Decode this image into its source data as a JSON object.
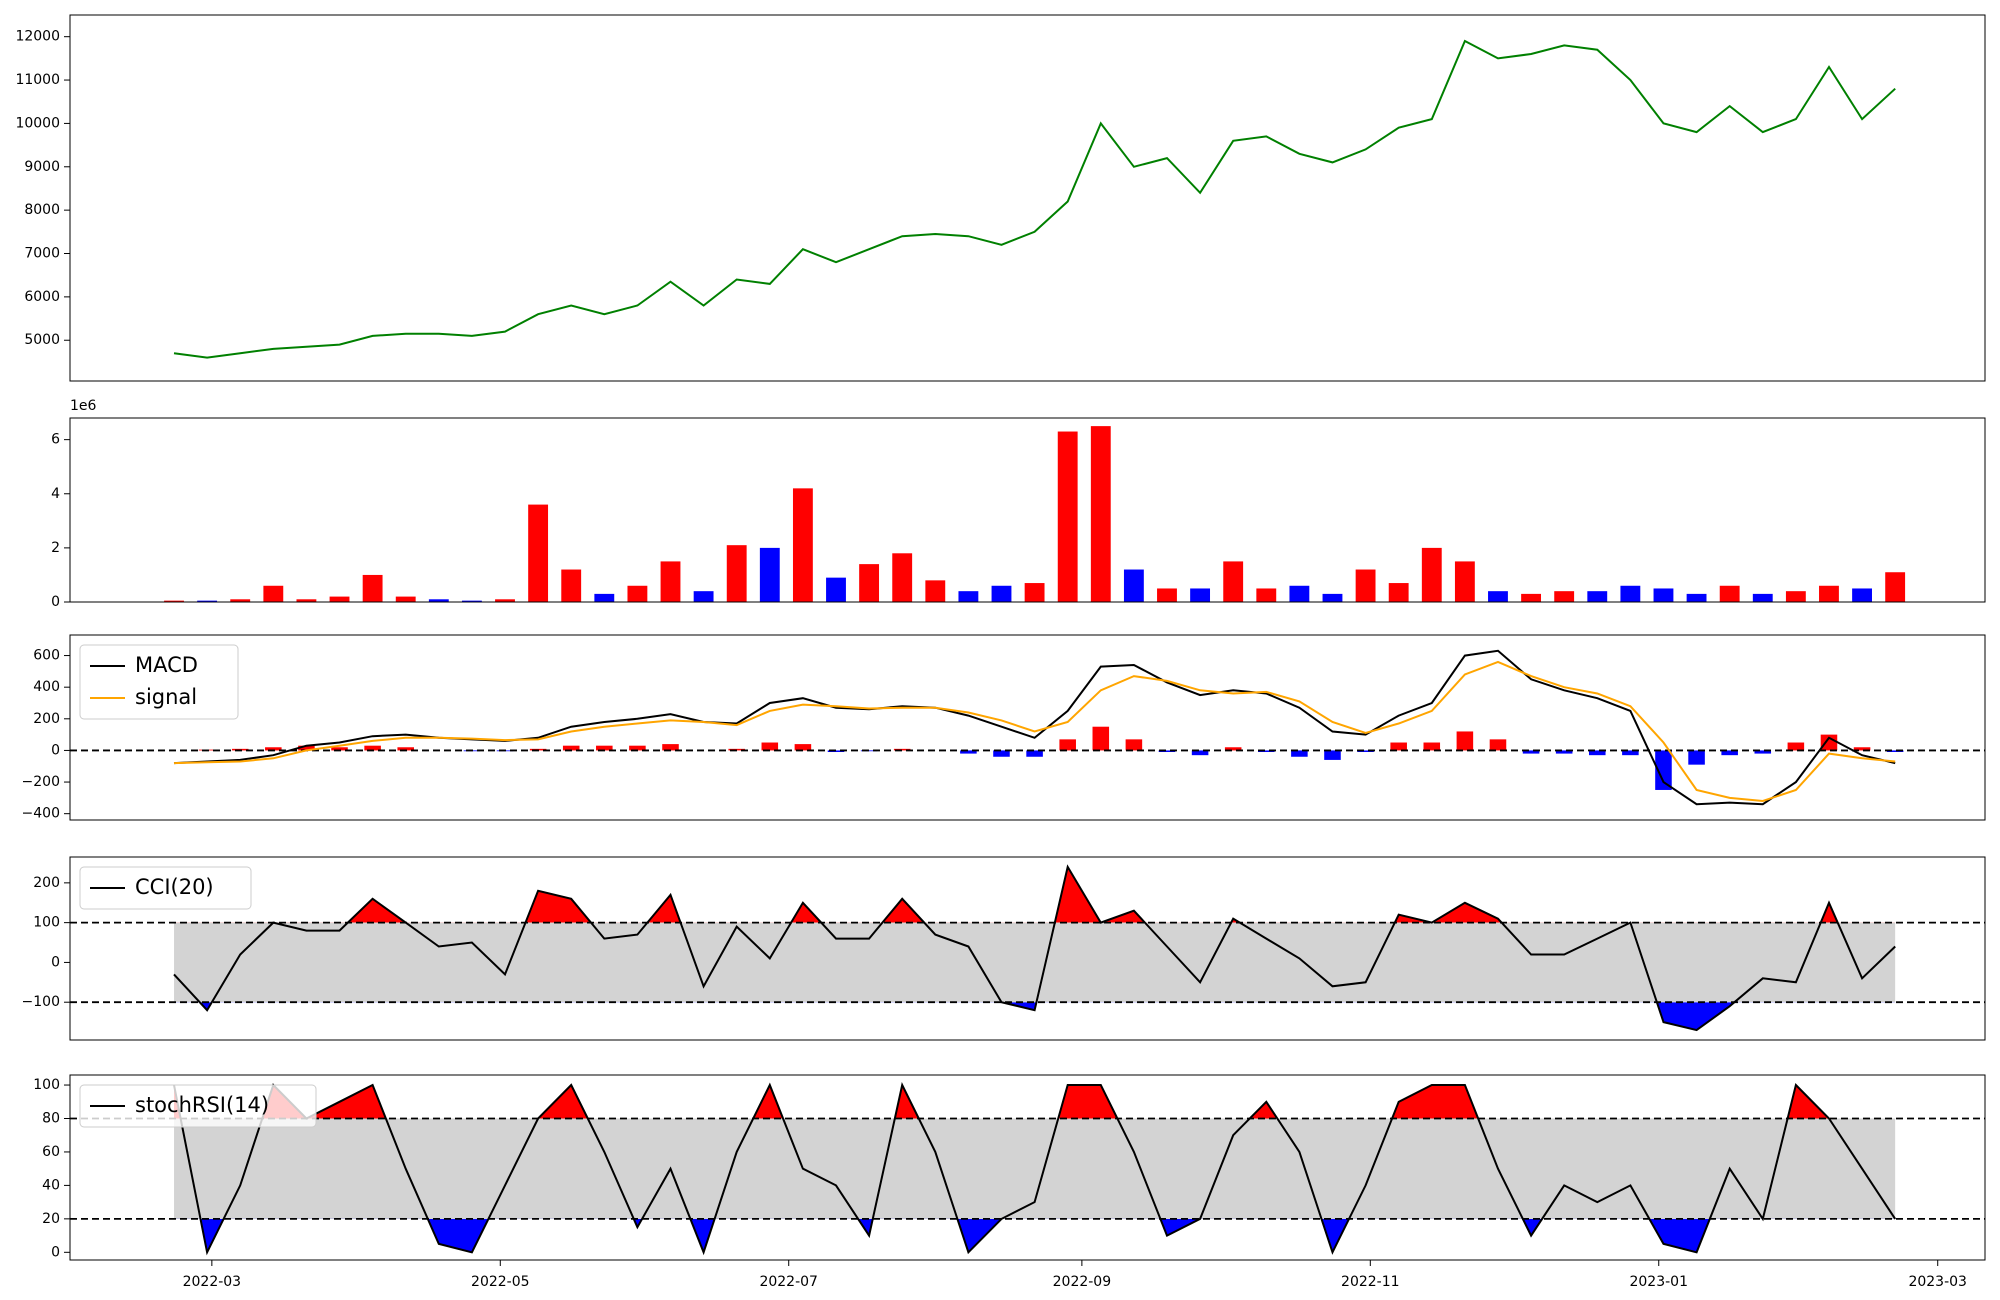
{
  "chart_data": [
    {
      "type": "line",
      "x": [
        "2022-02-21",
        "2022-02-28",
        "2022-03-07",
        "2022-03-14",
        "2022-03-21",
        "2022-03-28",
        "2022-04-04",
        "2022-04-11",
        "2022-04-18",
        "2022-04-25",
        "2022-05-02",
        "2022-05-09",
        "2022-05-16",
        "2022-05-23",
        "2022-05-30",
        "2022-06-06",
        "2022-06-13",
        "2022-06-20",
        "2022-06-27",
        "2022-07-04",
        "2022-07-11",
        "2022-07-18",
        "2022-07-25",
        "2022-08-01",
        "2022-08-08",
        "2022-08-15",
        "2022-08-22",
        "2022-08-29",
        "2022-09-05",
        "2022-09-12",
        "2022-09-19",
        "2022-09-26",
        "2022-10-03",
        "2022-10-10",
        "2022-10-17",
        "2022-10-24",
        "2022-10-31",
        "2022-11-07",
        "2022-11-14",
        "2022-11-21",
        "2022-11-28",
        "2022-12-05",
        "2022-12-12",
        "2022-12-19",
        "2022-12-26",
        "2023-01-02",
        "2023-01-09",
        "2023-01-16",
        "2023-01-23",
        "2023-01-30",
        "2023-02-06",
        "2023-02-13",
        "2023-02-20"
      ],
      "xlim": [
        "2022-01-30",
        "2023-03-11"
      ],
      "color": "green",
      "values": [
        4700,
        4600,
        4700,
        4800,
        4850,
        4900,
        5100,
        5150,
        5150,
        5100,
        5200,
        5600,
        5800,
        5600,
        5800,
        6350,
        5800,
        6400,
        6300,
        7100,
        6800,
        7100,
        7400,
        7450,
        7400,
        7200,
        7500,
        8200,
        10000,
        9000,
        9200,
        8400,
        9600,
        9700,
        9300,
        9100,
        9400,
        9900,
        10100,
        11900,
        11500,
        11600,
        11800,
        11700,
        11000,
        10000,
        9800,
        10400,
        9800,
        10100,
        11300,
        10100,
        10800
      ],
      "ylim": [
        4060,
        12500
      ],
      "yticks": [
        5000,
        6000,
        7000,
        8000,
        9000,
        10000,
        11000,
        12000
      ]
    },
    {
      "type": "bar",
      "offset_label": "1e6",
      "values": [
        0.05,
        0.05,
        0.1,
        0.6,
        0.1,
        0.2,
        1.0,
        0.2,
        0.1,
        0.05,
        0.1,
        3.6,
        1.2,
        0.3,
        0.6,
        1.5,
        0.4,
        2.1,
        2.0,
        4.2,
        0.9,
        1.4,
        1.8,
        0.8,
        0.4,
        0.6,
        0.7,
        6.3,
        6.5,
        1.2,
        0.5,
        0.5,
        1.5,
        0.5,
        0.6,
        0.3,
        1.2,
        0.7,
        2.0,
        1.5,
        0.4,
        0.3,
        0.4,
        0.4,
        0.6,
        0.5,
        0.3,
        0.6,
        0.3,
        0.4,
        0.6,
        0.5,
        1.1
      ],
      "colors": [
        "red",
        "blue",
        "red",
        "red",
        "red",
        "red",
        "red",
        "red",
        "blue",
        "blue",
        "red",
        "red",
        "red",
        "blue",
        "red",
        "red",
        "blue",
        "red",
        "blue",
        "red",
        "blue",
        "red",
        "red",
        "red",
        "blue",
        "blue",
        "red",
        "red",
        "red",
        "blue",
        "red",
        "blue",
        "red",
        "red",
        "blue",
        "blue",
        "red",
        "red",
        "red",
        "red",
        "blue",
        "red",
        "red",
        "blue",
        "blue",
        "blue",
        "blue",
        "red",
        "blue",
        "red",
        "red",
        "blue",
        "red"
      ],
      "ylim": [
        0,
        6.8
      ],
      "yticks": [
        0,
        2,
        4,
        6
      ]
    },
    {
      "type": "macd",
      "legend": "upper left",
      "series": [
        {
          "name": "MACD",
          "color": "black",
          "values": [
            -80,
            -70,
            -60,
            -30,
            30,
            50,
            90,
            100,
            80,
            70,
            60,
            80,
            150,
            180,
            200,
            230,
            180,
            170,
            300,
            330,
            270,
            260,
            280,
            270,
            220,
            150,
            80,
            250,
            530,
            540,
            430,
            350,
            380,
            360,
            270,
            120,
            100,
            220,
            300,
            600,
            630,
            450,
            380,
            330,
            250,
            -200,
            -340,
            -330,
            -340,
            -200,
            80,
            -30,
            -80
          ]
        },
        {
          "name": "signal",
          "color": "orange",
          "values": [
            -80,
            -75,
            -70,
            -50,
            0,
            30,
            60,
            80,
            80,
            75,
            65,
            70,
            120,
            150,
            170,
            190,
            180,
            160,
            250,
            290,
            280,
            265,
            270,
            270,
            240,
            190,
            120,
            180,
            380,
            470,
            440,
            380,
            360,
            370,
            310,
            180,
            110,
            170,
            250,
            480,
            560,
            470,
            400,
            360,
            280,
            50,
            -250,
            -300,
            -320,
            -250,
            -20,
            -50,
            -70
          ]
        }
      ],
      "histogram": {
        "pos_color": "red",
        "neg_color": "blue",
        "values": [
          0,
          5,
          10,
          20,
          30,
          20,
          30,
          20,
          0,
          -5,
          -5,
          10,
          30,
          30,
          30,
          40,
          0,
          10,
          50,
          40,
          -10,
          -5,
          10,
          0,
          -20,
          -40,
          -40,
          70,
          150,
          70,
          -10,
          -30,
          20,
          -10,
          -40,
          -60,
          -10,
          50,
          50,
          120,
          70,
          -20,
          -20,
          -30,
          -30,
          -250,
          -90,
          -30,
          -20,
          50,
          100,
          20,
          -10
        ]
      },
      "levels": [
        0
      ],
      "ylim": [
        -440,
        730
      ],
      "yticks": [
        {
          "value": -400,
          "label": "−400"
        },
        {
          "value": -200,
          "label": "−200"
        },
        0,
        200,
        400,
        600
      ]
    },
    {
      "type": "band",
      "legend": "upper left",
      "series": [
        {
          "name": "CCI(20)",
          "color": "black",
          "values": [
            -30,
            -120,
            20,
            100,
            80,
            80,
            160,
            100,
            40,
            50,
            -30,
            180,
            160,
            60,
            70,
            170,
            -60,
            90,
            10,
            150,
            60,
            60,
            160,
            70,
            40,
            -100,
            -120,
            240,
            100,
            130,
            40,
            -50,
            110,
            60,
            10,
            -60,
            -50,
            120,
            100,
            150,
            110,
            20,
            20,
            60,
            100,
            -150,
            -170,
            -110,
            -40,
            -50,
            150,
            -40,
            40
          ]
        }
      ],
      "levels": [
        100,
        -100
      ],
      "upper_color": "red",
      "lower_color": "blue",
      "band_color": "lightgray",
      "ylim": [
        -195,
        265
      ],
      "yticks": [
        {
          "value": -100,
          "label": "−100"
        },
        0,
        100,
        200
      ]
    },
    {
      "type": "band",
      "legend": "upper left",
      "series": [
        {
          "name": "stochRSI(14)",
          "color": "black",
          "values": [
            100,
            0,
            40,
            100,
            80,
            90,
            100,
            50,
            5,
            0,
            40,
            80,
            100,
            60,
            15,
            50,
            0,
            60,
            100,
            50,
            40,
            10,
            100,
            60,
            0,
            20,
            30,
            100,
            100,
            60,
            10,
            20,
            70,
            90,
            60,
            0,
            40,
            90,
            100,
            100,
            50,
            10,
            40,
            30,
            40,
            5,
            0,
            50,
            20,
            100,
            80,
            50,
            20
          ]
        }
      ],
      "levels": [
        80,
        20
      ],
      "upper_color": "red",
      "lower_color": "blue",
      "band_color": "lightgray",
      "ylim": [
        -4.6,
        106
      ],
      "yticks": [
        0,
        20,
        40,
        60,
        80,
        100
      ],
      "xticks": [
        {
          "value": "2022-03-01",
          "label": "2022-03"
        },
        {
          "value": "2022-05-01",
          "label": "2022-05"
        },
        {
          "value": "2022-07-01",
          "label": "2022-07"
        },
        {
          "value": "2022-09-01",
          "label": "2022-09"
        },
        {
          "value": "2022-11-01",
          "label": "2022-11"
        },
        {
          "value": "2023-01-01",
          "label": "2023-01"
        },
        {
          "value": "2023-03-01",
          "label": "2023-03"
        }
      ]
    }
  ]
}
